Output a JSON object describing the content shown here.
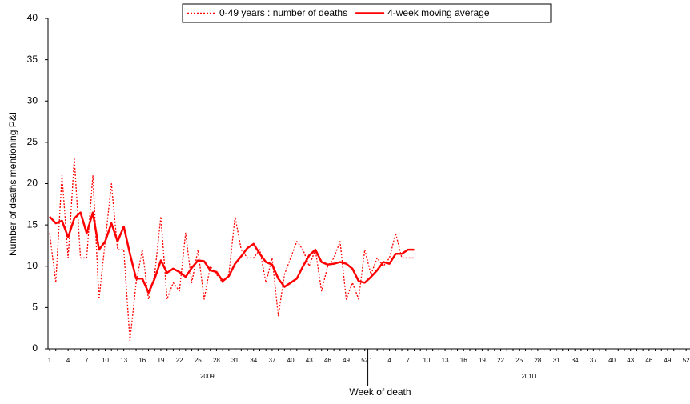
{
  "chart_data": {
    "type": "line",
    "y_label": "Number of deaths mentioning P&I",
    "x_label": "Week of death",
    "x_group_labels": [
      "2009",
      "2010"
    ],
    "categories": [
      "1",
      null,
      null,
      "4",
      null,
      null,
      "7",
      null,
      null,
      "10",
      null,
      null,
      "13",
      null,
      null,
      "16",
      null,
      null,
      "19",
      null,
      null,
      "22",
      null,
      null,
      "25",
      null,
      null,
      "28",
      null,
      null,
      "31",
      null,
      null,
      "34",
      null,
      null,
      "37",
      null,
      null,
      "40",
      null,
      null,
      "43",
      null,
      null,
      "46",
      null,
      null,
      "49",
      null,
      null,
      "52",
      "1",
      null,
      null,
      "4",
      null,
      null,
      "7",
      null,
      null,
      "10",
      null,
      null,
      "13",
      null,
      null,
      "16",
      null,
      null,
      "19",
      null,
      null,
      "22",
      null,
      null,
      "25",
      null,
      null,
      "28",
      null,
      null,
      "31",
      null,
      null,
      "34",
      null,
      null,
      "37",
      null,
      null,
      "40",
      null,
      null,
      "43",
      null,
      null,
      "46",
      null,
      null,
      "49",
      null,
      null,
      "52"
    ],
    "series": [
      {
        "name": "0-49 years : number of deaths",
        "color": "#ff0000",
        "line_style": "dotted",
        "values": [
          14,
          8,
          21,
          11,
          23,
          11,
          11,
          21,
          6,
          13,
          20,
          12,
          12,
          1,
          8,
          12,
          6,
          9,
          16,
          6,
          8,
          7,
          14,
          8,
          12,
          6,
          10,
          9,
          8,
          9,
          16,
          12,
          11,
          11,
          12,
          8,
          11,
          4,
          9,
          11,
          13,
          12,
          10,
          12,
          7,
          10,
          11,
          13,
          6,
          8,
          6,
          12,
          9,
          11,
          10,
          11,
          14,
          11,
          11,
          11,
          null,
          null,
          null,
          null,
          null,
          null,
          null,
          null,
          null,
          null,
          null,
          null,
          null,
          null,
          null,
          null,
          null,
          null,
          null,
          null,
          null,
          null,
          null,
          null,
          null,
          null,
          null,
          null,
          null,
          null,
          null,
          null,
          null,
          null,
          null,
          null,
          null,
          null,
          null,
          null,
          null,
          null,
          null,
          null
        ]
      },
      {
        "name": "4-week moving average",
        "color": "#ff0000",
        "line_style": "solid",
        "values": [
          16,
          15.2,
          15.5,
          13.5,
          15.8,
          16.5,
          14,
          16.5,
          12,
          13,
          15.2,
          13,
          14.8,
          11.5,
          8.5,
          8.5,
          6.8,
          8.5,
          10.7,
          9.2,
          9.7,
          9.3,
          8.7,
          9.8,
          10.7,
          10.6,
          9.5,
          9.3,
          8.2,
          8.8,
          10.3,
          11.2,
          12.2,
          12.7,
          11.5,
          10.5,
          10.2,
          8.5,
          7.5,
          8,
          8.5,
          10,
          11.3,
          12,
          10.5,
          10.2,
          10.3,
          10.5,
          10.3,
          9.7,
          8.2,
          8,
          8.7,
          9.5,
          10.5,
          10.3,
          11.5,
          11.5,
          12,
          12,
          null,
          null,
          null,
          null,
          null,
          null,
          null,
          null,
          null,
          null,
          null,
          null,
          null,
          null,
          null,
          null,
          null,
          null,
          null,
          null,
          null,
          null,
          null,
          null,
          null,
          null,
          null,
          null,
          null,
          null,
          null,
          null,
          null,
          null,
          null,
          null,
          null,
          null,
          null,
          null,
          null,
          null,
          null,
          null
        ]
      }
    ],
    "ylim": [
      0,
      40
    ],
    "yticks": [
      0,
      5,
      10,
      15,
      20,
      25,
      30,
      35,
      40
    ]
  }
}
